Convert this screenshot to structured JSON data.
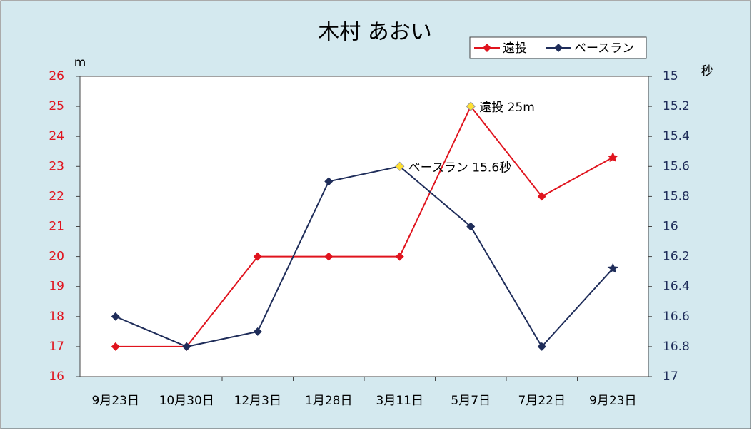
{
  "chart_data": {
    "type": "line",
    "title": "木村 あおい",
    "categories": [
      "9月23日",
      "10月30日",
      "12月3日",
      "1月28日",
      "3月11日",
      "5月7日",
      "7月22日",
      "9月23日"
    ],
    "series": [
      {
        "name": "遠投",
        "color": "#e0141e",
        "values": [
          17,
          17,
          20,
          20,
          20,
          25,
          22,
          23.3
        ]
      },
      {
        "name": "ベースラン",
        "color": "#1f2d5a",
        "axis": "y2",
        "values": [
          16.6,
          16.8,
          16.7,
          15.7,
          15.6,
          16,
          16.8,
          16.28
        ]
      }
    ],
    "ylabel": "m",
    "y2label": "秒",
    "ylim": [
      16,
      26
    ],
    "yticks": [
      16,
      17,
      18,
      19,
      20,
      21,
      22,
      23,
      24,
      25,
      26
    ],
    "y2lim": [
      17,
      15
    ],
    "y2ticks": [
      15,
      15.2,
      15.4,
      15.6,
      15.8,
      16,
      16.2,
      16.4,
      16.6,
      16.8,
      17
    ],
    "highlight_color": "#ffe033",
    "last_marker": "star",
    "annotations": [
      {
        "text": "遠投 25m",
        "series": 0,
        "index": 5
      },
      {
        "text": "ベースラン 15.6秒",
        "series": 1,
        "index": 4
      }
    ],
    "legend": "top-right",
    "grid": false
  }
}
